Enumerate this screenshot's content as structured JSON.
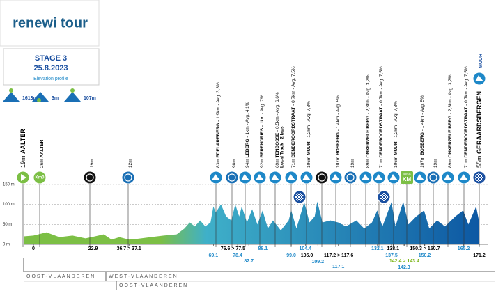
{
  "header": {
    "logo": "renewi tour",
    "stage": "STAGE 3",
    "date": "25.8.2023",
    "subtitle": "Elevation profile",
    "stats": [
      "1613m",
      "3m",
      "107m"
    ]
  },
  "icon_texts": {
    "km0": "Km0",
    "bonus_top": "Bonus",
    "bonus": "KM"
  },
  "points": [
    {
      "elev": "19m",
      "name": "AALTER"
    },
    {
      "elev": "26m",
      "name": "AALTER"
    },
    {
      "elev": "19m"
    },
    {
      "elev": "12m"
    },
    {
      "elev": "83m",
      "name": "EDELAREBERG",
      "detail": "- 1,9km - Avg. 3,3%"
    },
    {
      "elev": "98m"
    },
    {
      "elev": "94m",
      "name": "LEBERG",
      "detail": "- 1km - Avg. 4,1%"
    },
    {
      "elev": "92m",
      "name": "BERENDRIES",
      "detail": "- 1km - Avg. 7%"
    },
    {
      "elev": "69m",
      "name": "TENBOSSE",
      "detail": "- 0,5km - Avg. 6,6%",
      "note": "Local Track | 2 laps"
    },
    {
      "elev": "71m",
      "name": "DENDEROORDSTRAAT",
      "detail": "- 0,7km - Avg. 7,5%"
    },
    {
      "elev": "106m",
      "name": "MUUR",
      "detail": "- 1,2km - Avg. 7,8%"
    },
    {
      "elev": "107m",
      "name": "BOSBERG",
      "detail": "- 1,4km - Avg. 5%"
    },
    {
      "elev": "19m"
    },
    {
      "elev": "89m",
      "name": "ONKERZELE BERG",
      "detail": "- 2,3km - Avg. 3,2%"
    },
    {
      "elev": "71m",
      "name": "DENDEROORDSTRAAT",
      "detail": "- 0,7km - Avg. 7,5%"
    },
    {
      "elev": "106m",
      "name": "MUUR",
      "detail": "- 1,2km - Avg. 7,8%"
    },
    {
      "elev": "107m",
      "name": "BOSBERG",
      "detail": "- 1,4km - Avg. 5%"
    },
    {
      "elev": "19m"
    },
    {
      "elev": "89m",
      "name": "ONKERZELE BERG",
      "detail": "- 2,3km - Avg. 3,2%"
    },
    {
      "elev": "71m",
      "name": "DENDEROORDSTRAAT",
      "detail": "- 0,7km - Avg. 7,5%"
    },
    {
      "elev": "55m",
      "name": "GERAARDSBERGEN"
    }
  ],
  "finish_climb": "MUUR",
  "regions": [
    "OOST-VLAANDEREN",
    "WEST-VLAANDEREN",
    "OOST-VLAANDEREN"
  ],
  "chart_data": {
    "type": "area",
    "colors": [
      "#7cbf45",
      "#3fb0c9",
      "#0d58a3"
    ],
    "xlim": [
      -3.7,
      171.2
    ],
    "ylim": [
      0,
      150
    ],
    "yticks": [
      {
        "value": 0,
        "label": "0 m"
      },
      {
        "value": 50,
        "label": "50 m"
      },
      {
        "value": 100,
        "label": "100 m"
      },
      {
        "value": 150,
        "label": "150 m"
      }
    ],
    "grid": true,
    "x": [
      -3.7,
      0,
      5,
      10,
      15,
      20,
      22.9,
      27,
      30,
      33,
      36.7,
      40,
      45,
      50,
      55,
      58,
      60,
      62,
      64,
      66,
      68,
      69.1,
      70,
      72,
      74,
      76,
      77.5,
      79,
      80,
      82,
      84,
      86,
      88,
      90,
      92,
      95,
      98,
      99,
      101,
      104,
      106,
      108,
      109,
      111,
      114,
      117,
      120,
      124,
      127,
      130,
      132,
      134,
      137.5,
      139,
      142,
      144,
      147,
      150,
      152,
      155,
      158,
      162,
      165,
      167,
      170,
      171.2
    ],
    "values": [
      20,
      22,
      30,
      18,
      22,
      15,
      19,
      25,
      12,
      18,
      12,
      14,
      18,
      22,
      25,
      40,
      55,
      45,
      60,
      45,
      55,
      95,
      80,
      100,
      70,
      60,
      100,
      70,
      95,
      55,
      88,
      50,
      85,
      40,
      60,
      35,
      60,
      85,
      40,
      106,
      55,
      70,
      107,
      55,
      60,
      55,
      45,
      60,
      40,
      55,
      85,
      45,
      106,
      45,
      107,
      50,
      70,
      85,
      40,
      60,
      45,
      70,
      85,
      50,
      95,
      55
    ],
    "xticks": [
      0,
      22.9,
      {
        "value": 36.7,
        "label": "36.7 > 37.1"
      },
      {
        "value": 76.6,
        "label": "76.6 > 77.5"
      },
      69.1,
      78.4,
      82.7,
      88.1,
      {
        "value": 99,
        "label": "99.0"
      },
      104.4,
      {
        "value": 105,
        "label": "105.0"
      },
      109.2,
      {
        "value": 117.2,
        "label": "117.2 > 117.6"
      },
      117.1,
      132.1,
      138.1,
      137.5,
      {
        "value": 142.4,
        "label": "142.4 > 143.4"
      },
      142.3,
      {
        "value": 150.3,
        "label": "150.3 > 150.7"
      },
      150.2,
      165.2,
      171.2
    ],
    "xtick_colors": [
      "#000",
      "#000",
      "#000",
      "#000",
      "#1e88c8",
      "#1e88c8",
      "#1e88c8",
      "#1e88c8",
      "#1e88c8",
      "#1e88c8",
      "#000",
      "#1e88c8",
      "#000",
      "#1e88c8",
      "#1e88c8",
      "#000",
      "#1e88c8",
      "#7cb518",
      "#1e88c8",
      "#000",
      "#1e88c8",
      "#1e88c8",
      "#000"
    ]
  }
}
